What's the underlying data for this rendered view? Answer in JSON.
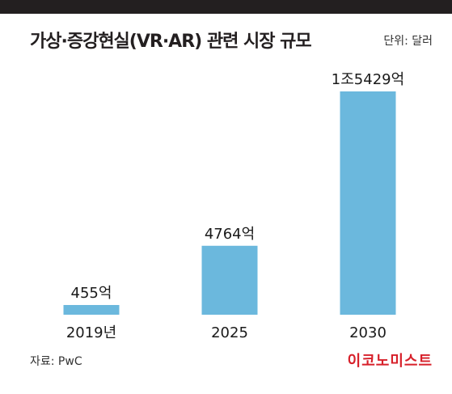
{
  "header": {
    "title": "가상·증강현실(VR·AR) 관련 시장 규모",
    "unit": "단위: 달러"
  },
  "footer": {
    "source": "자료: PwC",
    "brand": "이코노미스트"
  },
  "colors": {
    "bar": "#6bb8dd",
    "top_bar": "#231f20",
    "brand": "#d7202a"
  },
  "chart_data": {
    "type": "bar",
    "title": "가상·증강현실(VR·AR) 관련 시장 규모",
    "xlabel": "",
    "ylabel": "",
    "unit": "단위: 달러",
    "categories": [
      "2019년",
      "2025",
      "2030"
    ],
    "values": [
      45500000000,
      476400000000,
      1542900000000
    ],
    "data_labels": [
      "455억",
      "4764억",
      "1조5429억"
    ],
    "ylim": [
      0,
      1542900000000
    ],
    "grid": false,
    "legend": false
  }
}
